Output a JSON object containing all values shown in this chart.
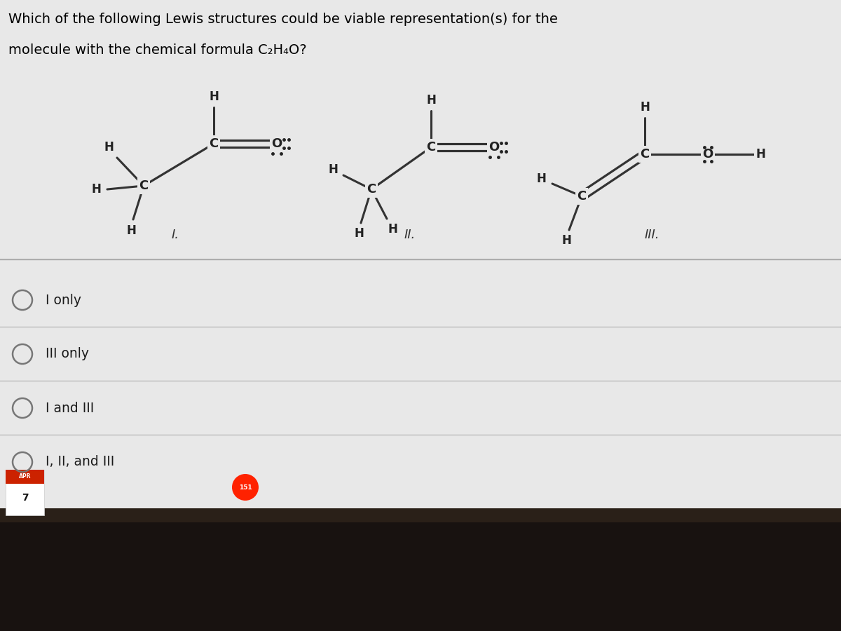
{
  "title_line1": "Which of the following Lewis structures could be viable representation(s) for the",
  "title_line2": "molecule with the chemical formula C₂H₄O?",
  "bg_color": "#d5d5d5",
  "white_bg": "#ebebeb",
  "options": [
    "I only",
    "III only",
    "I and III",
    "I, II, and III"
  ],
  "structure_labels": [
    "I.",
    "II.",
    "III."
  ],
  "dock_bg": "#181210",
  "footer_badge": "151"
}
